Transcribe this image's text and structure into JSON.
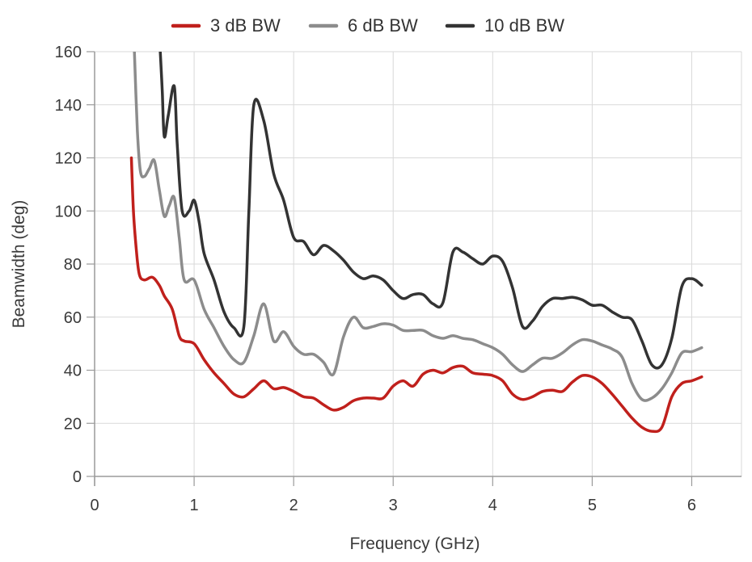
{
  "chart_data": {
    "type": "line",
    "title": "",
    "xlabel": "Frequency (GHz)",
    "ylabel": "Beamwidth (deg)",
    "xlim": [
      0,
      6.5
    ],
    "ylim": [
      0,
      160
    ],
    "xticks": [
      0,
      1,
      2,
      3,
      4,
      5,
      6,
      7
    ],
    "yticks": [
      0,
      20,
      40,
      60,
      80,
      100,
      120,
      140,
      160
    ],
    "grid": true,
    "legend_position": "top-center",
    "series": [
      {
        "name": "3 dB BW",
        "color": "#c0201c",
        "points": [
          [
            0.37,
            120
          ],
          [
            0.39,
            100
          ],
          [
            0.42,
            85
          ],
          [
            0.45,
            76
          ],
          [
            0.5,
            74
          ],
          [
            0.58,
            75
          ],
          [
            0.65,
            72
          ],
          [
            0.7,
            68
          ],
          [
            0.78,
            63
          ],
          [
            0.85,
            53
          ],
          [
            0.9,
            51
          ],
          [
            1.0,
            50
          ],
          [
            1.1,
            44
          ],
          [
            1.2,
            39
          ],
          [
            1.3,
            35
          ],
          [
            1.4,
            31
          ],
          [
            1.5,
            30
          ],
          [
            1.6,
            33
          ],
          [
            1.7,
            36
          ],
          [
            1.8,
            33
          ],
          [
            1.9,
            33.5
          ],
          [
            2.0,
            32
          ],
          [
            2.1,
            30
          ],
          [
            2.2,
            29.5
          ],
          [
            2.3,
            27
          ],
          [
            2.4,
            25
          ],
          [
            2.5,
            26
          ],
          [
            2.6,
            28.5
          ],
          [
            2.7,
            29.5
          ],
          [
            2.8,
            29.5
          ],
          [
            2.9,
            29.5
          ],
          [
            3.0,
            34
          ],
          [
            3.1,
            36
          ],
          [
            3.2,
            34
          ],
          [
            3.3,
            38.5
          ],
          [
            3.4,
            40
          ],
          [
            3.5,
            39
          ],
          [
            3.6,
            41
          ],
          [
            3.7,
            41.5
          ],
          [
            3.8,
            39
          ],
          [
            3.9,
            38.5
          ],
          [
            4.0,
            38
          ],
          [
            4.1,
            36
          ],
          [
            4.2,
            31
          ],
          [
            4.3,
            29
          ],
          [
            4.4,
            30
          ],
          [
            4.5,
            32
          ],
          [
            4.6,
            32.5
          ],
          [
            4.7,
            32
          ],
          [
            4.8,
            35.5
          ],
          [
            4.9,
            38
          ],
          [
            5.0,
            37.5
          ],
          [
            5.1,
            35
          ],
          [
            5.2,
            31
          ],
          [
            5.3,
            26.5
          ],
          [
            5.4,
            22
          ],
          [
            5.5,
            18.5
          ],
          [
            5.6,
            17
          ],
          [
            5.7,
            18.5
          ],
          [
            5.8,
            30
          ],
          [
            5.9,
            35
          ],
          [
            6.0,
            36
          ],
          [
            6.1,
            37.5
          ]
        ]
      },
      {
        "name": "6 dB BW",
        "color": "#8c8c8c",
        "points": [
          [
            0.4,
            160
          ],
          [
            0.43,
            130
          ],
          [
            0.46,
            115
          ],
          [
            0.5,
            113
          ],
          [
            0.55,
            116
          ],
          [
            0.6,
            119
          ],
          [
            0.65,
            108
          ],
          [
            0.7,
            98
          ],
          [
            0.75,
            102
          ],
          [
            0.8,
            105
          ],
          [
            0.85,
            90
          ],
          [
            0.9,
            74
          ],
          [
            1.0,
            74
          ],
          [
            1.1,
            63
          ],
          [
            1.2,
            56
          ],
          [
            1.3,
            49
          ],
          [
            1.4,
            44
          ],
          [
            1.5,
            43
          ],
          [
            1.6,
            53
          ],
          [
            1.7,
            65
          ],
          [
            1.8,
            51
          ],
          [
            1.9,
            54.5
          ],
          [
            2.0,
            49
          ],
          [
            2.1,
            46
          ],
          [
            2.2,
            46
          ],
          [
            2.3,
            43
          ],
          [
            2.4,
            38.5
          ],
          [
            2.5,
            52.5
          ],
          [
            2.6,
            60
          ],
          [
            2.7,
            56
          ],
          [
            2.8,
            56.5
          ],
          [
            2.9,
            57.5
          ],
          [
            3.0,
            57
          ],
          [
            3.1,
            55
          ],
          [
            3.2,
            55
          ],
          [
            3.3,
            55
          ],
          [
            3.4,
            53
          ],
          [
            3.5,
            52
          ],
          [
            3.6,
            53
          ],
          [
            3.7,
            52
          ],
          [
            3.8,
            51.5
          ],
          [
            3.9,
            50
          ],
          [
            4.0,
            48.5
          ],
          [
            4.1,
            46
          ],
          [
            4.2,
            42
          ],
          [
            4.3,
            39.5
          ],
          [
            4.4,
            42
          ],
          [
            4.5,
            44.5
          ],
          [
            4.6,
            44.5
          ],
          [
            4.7,
            46.5
          ],
          [
            4.8,
            49.5
          ],
          [
            4.9,
            51.5
          ],
          [
            5.0,
            51
          ],
          [
            5.1,
            49.5
          ],
          [
            5.2,
            48
          ],
          [
            5.3,
            45
          ],
          [
            5.4,
            35
          ],
          [
            5.5,
            29
          ],
          [
            5.6,
            29.5
          ],
          [
            5.7,
            33
          ],
          [
            5.8,
            39
          ],
          [
            5.9,
            46.5
          ],
          [
            6.0,
            47
          ],
          [
            6.1,
            48.5
          ]
        ]
      },
      {
        "name": "10 dB BW",
        "color": "#333333",
        "points": [
          [
            0.66,
            160
          ],
          [
            0.68,
            145
          ],
          [
            0.7,
            128
          ],
          [
            0.74,
            136
          ],
          [
            0.8,
            147
          ],
          [
            0.83,
            125
          ],
          [
            0.88,
            100
          ],
          [
            0.95,
            100
          ],
          [
            1.0,
            104
          ],
          [
            1.05,
            96
          ],
          [
            1.1,
            84
          ],
          [
            1.2,
            74
          ],
          [
            1.3,
            62
          ],
          [
            1.4,
            56
          ],
          [
            1.5,
            56.5
          ],
          [
            1.55,
            100
          ],
          [
            1.6,
            140
          ],
          [
            1.7,
            134
          ],
          [
            1.8,
            114
          ],
          [
            1.9,
            104
          ],
          [
            2.0,
            90
          ],
          [
            2.1,
            88.5
          ],
          [
            2.2,
            83.5
          ],
          [
            2.3,
            87
          ],
          [
            2.4,
            85
          ],
          [
            2.5,
            81.5
          ],
          [
            2.6,
            77
          ],
          [
            2.7,
            74.5
          ],
          [
            2.8,
            75.5
          ],
          [
            2.9,
            74
          ],
          [
            3.0,
            70
          ],
          [
            3.1,
            67
          ],
          [
            3.2,
            68.5
          ],
          [
            3.3,
            68.5
          ],
          [
            3.4,
            65
          ],
          [
            3.5,
            65.5
          ],
          [
            3.6,
            84.5
          ],
          [
            3.7,
            84.5
          ],
          [
            3.8,
            82
          ],
          [
            3.9,
            80
          ],
          [
            4.0,
            83
          ],
          [
            4.1,
            81
          ],
          [
            4.2,
            71
          ],
          [
            4.3,
            56.5
          ],
          [
            4.4,
            58.5
          ],
          [
            4.5,
            64
          ],
          [
            4.6,
            67
          ],
          [
            4.7,
            67
          ],
          [
            4.8,
            67.5
          ],
          [
            4.9,
            66.5
          ],
          [
            5.0,
            64.5
          ],
          [
            5.1,
            64.5
          ],
          [
            5.2,
            62
          ],
          [
            5.3,
            60
          ],
          [
            5.4,
            59
          ],
          [
            5.5,
            51
          ],
          [
            5.6,
            42
          ],
          [
            5.7,
            42
          ],
          [
            5.8,
            52
          ],
          [
            5.9,
            71.5
          ],
          [
            6.0,
            74.5
          ],
          [
            6.1,
            72
          ]
        ]
      }
    ]
  }
}
